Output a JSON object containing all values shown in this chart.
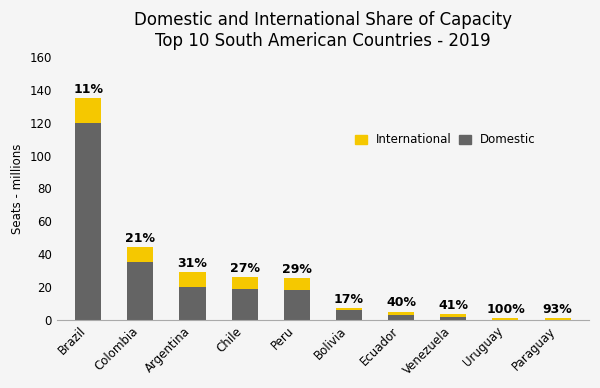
{
  "title_line1": "Domestic and International Share of Capacity",
  "title_line2": "Top 10 South American Countries - 2019",
  "countries": [
    "Brazil",
    "Colombia",
    "Argentina",
    "Chile",
    "Peru",
    "Bolivia",
    "Ecuador",
    "Venezuela",
    "Uruguay",
    "Paraguay"
  ],
  "domestic_values": [
    120,
    35,
    20,
    19,
    18,
    6,
    3,
    2,
    0.07,
    0.07
  ],
  "international_pct": [
    11,
    21,
    31,
    27,
    29,
    17,
    40,
    41,
    100,
    93
  ],
  "international_values": [
    14.8,
    9.3,
    9.0,
    7.0,
    7.4,
    1.2,
    2.0,
    1.4,
    1.0,
    1.0
  ],
  "ylabel": "Seats - millions",
  "ylim": [
    0,
    160
  ],
  "yticks": [
    0,
    20,
    40,
    60,
    80,
    100,
    120,
    140,
    160
  ],
  "domestic_color": "#646464",
  "international_color": "#F5C800",
  "background_color": "#f5f5f5",
  "legend_international": "International",
  "legend_domestic": "Domestic",
  "title_fontsize": 12,
  "label_fontsize": 9,
  "axis_label_fontsize": 8.5,
  "tick_label_fontsize": 8.5
}
